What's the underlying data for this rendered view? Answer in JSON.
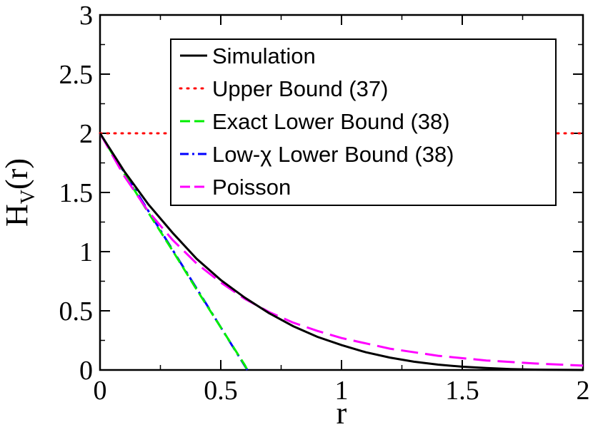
{
  "chart_data": {
    "type": "line",
    "xlabel": "r",
    "ylabel": "H",
    "ylabel_sub": "V",
    "ylabel_tail": "(r)",
    "xlim": [
      0,
      2
    ],
    "ylim": [
      0,
      3
    ],
    "x_major_ticks": [
      0,
      0.5,
      1,
      1.5,
      2
    ],
    "x_tick_labels": [
      "0",
      "0.5",
      "1",
      "1.5",
      "2"
    ],
    "y_major_ticks": [
      0,
      0.5,
      1,
      1.5,
      2,
      2.5,
      3
    ],
    "y_tick_labels": [
      "0",
      "0.5",
      "1",
      "1.5",
      "2",
      "2.5",
      "3"
    ],
    "grid": false,
    "legend_position": "top-right",
    "series": [
      {
        "name": "Simulation",
        "color": "#000000",
        "style": "solid",
        "x": [
          0,
          0.1,
          0.2,
          0.3,
          0.4,
          0.5,
          0.6,
          0.7,
          0.8,
          0.9,
          1.0,
          1.1,
          1.2,
          1.3,
          1.4,
          1.5,
          1.6,
          1.7,
          1.8,
          1.9,
          2.0
        ],
        "y": [
          2.0,
          1.68,
          1.4,
          1.16,
          0.94,
          0.76,
          0.61,
          0.48,
          0.37,
          0.28,
          0.21,
          0.15,
          0.105,
          0.07,
          0.045,
          0.028,
          0.016,
          0.008,
          0.003,
          0.001,
          0.0
        ]
      },
      {
        "name": "Upper Bound (37)",
        "color": "#ff0000",
        "style": "dotted",
        "x": [
          0,
          2
        ],
        "y": [
          2.0,
          2.0
        ]
      },
      {
        "name": "Exact Lower Bound (38)",
        "color": "#00ee00",
        "style": "dashed",
        "x": [
          0,
          0.1,
          0.2,
          0.3,
          0.4,
          0.5,
          0.6,
          0.61
        ],
        "y": [
          2.0,
          1.66,
          1.33,
          1.01,
          0.68,
          0.36,
          0.04,
          0.0
        ]
      },
      {
        "name": "Low-χ Lower Bound (38)",
        "color": "#0000ff",
        "style": "dashdot",
        "x": [
          0,
          0.61
        ],
        "y": [
          2.0,
          0.0
        ]
      },
      {
        "name": "Poisson",
        "color": "#ff00ff",
        "style": "longdash",
        "x": [
          0,
          0.1,
          0.2,
          0.3,
          0.4,
          0.5,
          0.6,
          0.7,
          0.8,
          0.9,
          1.0,
          1.2,
          1.4,
          1.6,
          1.8,
          2.0
        ],
        "y": [
          2.0,
          1.64,
          1.34,
          1.1,
          0.9,
          0.74,
          0.6,
          0.49,
          0.4,
          0.33,
          0.27,
          0.18,
          0.12,
          0.08,
          0.055,
          0.037
        ]
      }
    ]
  }
}
